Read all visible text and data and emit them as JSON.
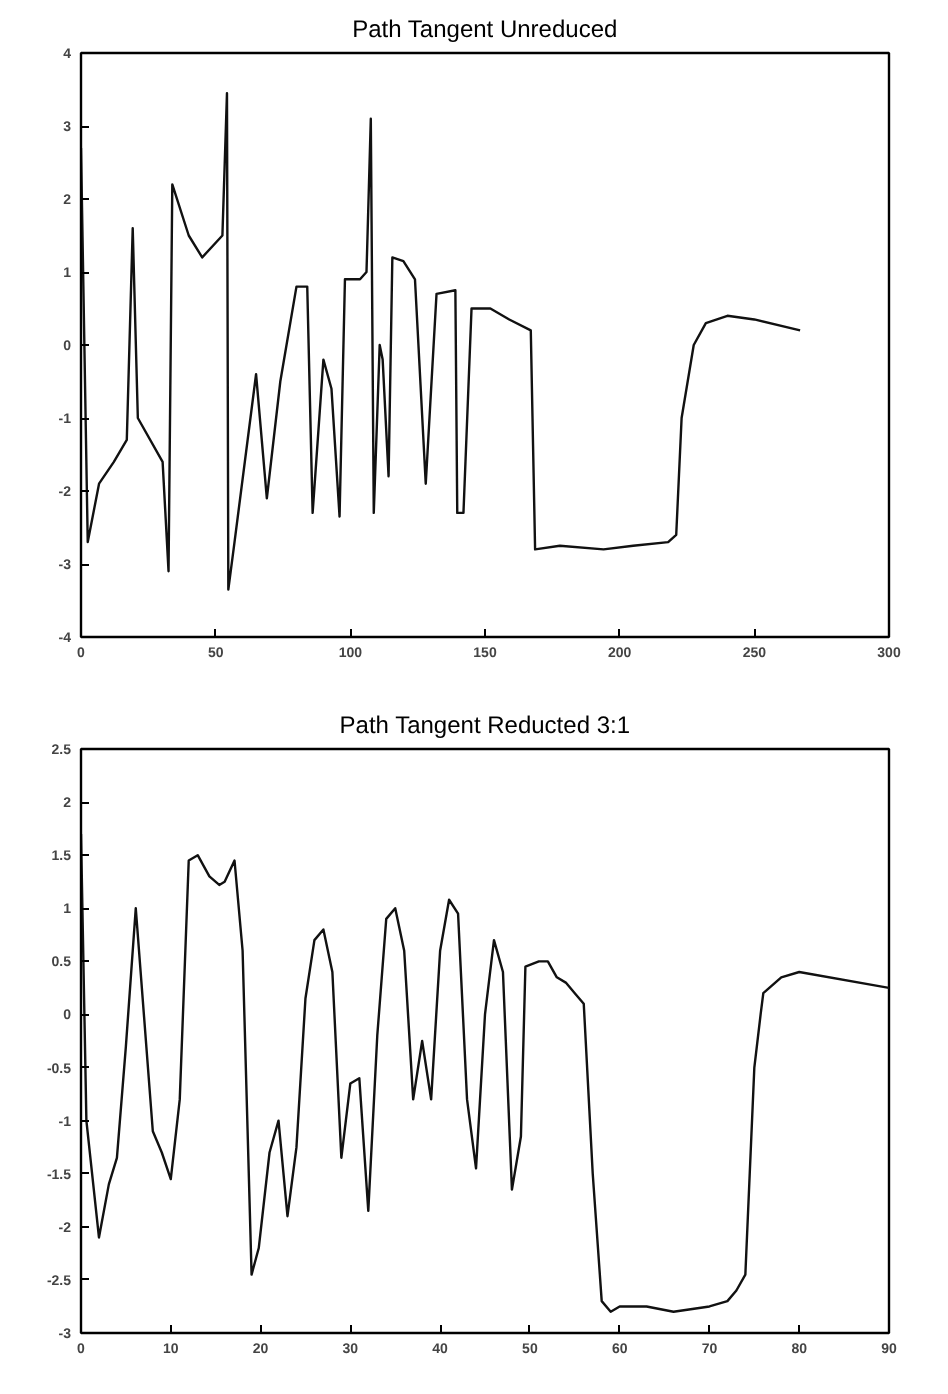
{
  "chart_data": [
    {
      "type": "line",
      "title": "Path Tangent Unreduced",
      "xlim": [
        0,
        300
      ],
      "ylim": [
        -4,
        4
      ],
      "xticks": [
        0,
        50,
        100,
        150,
        200,
        250,
        300
      ],
      "yticks": [
        -4,
        -3,
        -2,
        -1,
        0,
        1,
        2,
        3,
        4
      ],
      "grid": false,
      "marker": "none",
      "line_style": "solid",
      "series": [
        {
          "color": "#111111",
          "x": [
            0,
            2.5,
            6.7,
            12.2,
            17,
            19.2,
            21.1,
            30.3,
            32.5,
            33.9,
            40,
            45,
            52.5,
            54.2,
            54.7,
            57,
            65,
            69,
            74,
            80,
            84,
            86,
            90,
            93,
            96,
            98,
            103.6,
            106,
            107.6,
            108.7,
            110.9,
            112,
            114.2,
            115.6,
            119.7,
            124,
            128,
            132,
            139,
            139.7,
            142,
            145,
            152,
            159,
            167,
            168.6,
            177.8,
            194,
            205,
            218,
            221,
            223,
            227.5,
            232,
            240,
            250,
            267
          ],
          "values": [
            2.7,
            -2.7,
            -1.9,
            -1.6,
            -1.3,
            1.6,
            -1.0,
            -1.6,
            -3.1,
            2.2,
            1.5,
            1.2,
            1.5,
            3.45,
            -3.35,
            -2.7,
            -0.4,
            -2.1,
            -0.5,
            0.8,
            0.8,
            -2.3,
            -0.2,
            -0.6,
            -2.35,
            0.9,
            0.9,
            1.0,
            3.1,
            -2.3,
            0.0,
            -0.2,
            -1.8,
            1.2,
            1.15,
            0.9,
            -1.9,
            0.7,
            0.75,
            -2.3,
            -2.3,
            0.5,
            0.5,
            0.35,
            0.2,
            -2.8,
            -2.75,
            -2.8,
            -2.75,
            -2.7,
            -2.6,
            -1.0,
            0.0,
            0.3,
            0.4,
            0.35,
            0.2
          ]
        }
      ]
    },
    {
      "type": "line",
      "title": "Path Tangent Reducted 3:1",
      "xlim": [
        0,
        90
      ],
      "ylim": [
        -3,
        2.5
      ],
      "xticks": [
        0,
        10,
        20,
        30,
        40,
        50,
        60,
        70,
        80,
        90
      ],
      "yticks": [
        -3,
        -2.5,
        -2,
        -1.5,
        -1,
        -0.5,
        0,
        0.5,
        1,
        1.5,
        2,
        2.5
      ],
      "grid": false,
      "marker": "none",
      "line_style": "solid",
      "series": [
        {
          "color": "#111111",
          "x": [
            0,
            0.6,
            2,
            3.1,
            4,
            5,
            6.1,
            8,
            9,
            10,
            11,
            12,
            13,
            14.3,
            15.4,
            16,
            17.1,
            18,
            19,
            19.8,
            21,
            22,
            23,
            24,
            25,
            26,
            27,
            28,
            29,
            30,
            31,
            32,
            33,
            34,
            35,
            36,
            37,
            38,
            39,
            40,
            41,
            42,
            43,
            44,
            45,
            46,
            47,
            48,
            49,
            49.5,
            51,
            52,
            53,
            54,
            55,
            56,
            57,
            58,
            59,
            60,
            63,
            66,
            70,
            72,
            73,
            74,
            75,
            75.7,
            76,
            78,
            80,
            90
          ],
          "values": [
            1.7,
            -1.0,
            -2.1,
            -1.6,
            -1.35,
            -0.3,
            1.0,
            -1.1,
            -1.3,
            -1.55,
            -0.8,
            1.45,
            1.5,
            1.3,
            1.22,
            1.25,
            1.45,
            0.6,
            -2.45,
            -2.2,
            -1.3,
            -1.0,
            -1.9,
            -1.25,
            0.15,
            0.7,
            0.8,
            0.4,
            -1.35,
            -0.65,
            -0.6,
            -1.85,
            -0.2,
            0.9,
            1.0,
            0.6,
            -0.8,
            -0.25,
            -0.8,
            0.6,
            1.08,
            0.95,
            -0.8,
            -1.45,
            0.0,
            0.7,
            0.4,
            -1.65,
            -1.15,
            0.45,
            0.5,
            0.5,
            0.35,
            0.3,
            0.2,
            0.1,
            -1.5,
            -2.7,
            -2.8,
            -2.75,
            -2.75,
            -2.8,
            -2.75,
            -2.7,
            -2.6,
            -2.45,
            -0.5,
            0.0,
            0.2,
            0.35,
            0.4,
            0.25
          ]
        }
      ]
    }
  ]
}
